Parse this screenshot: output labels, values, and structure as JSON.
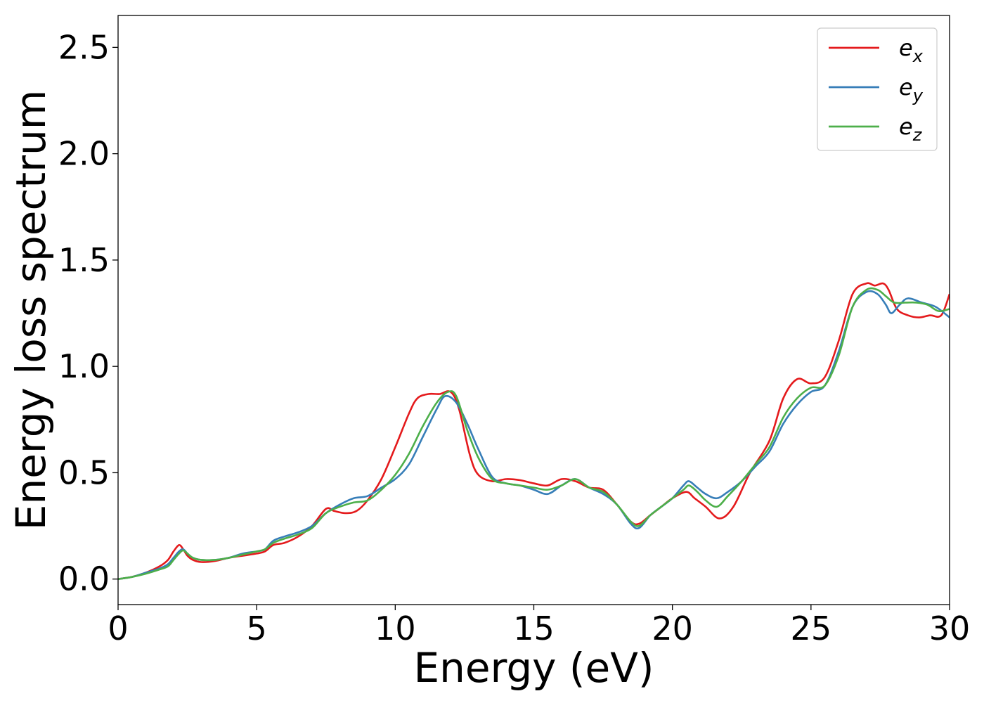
{
  "chart_data": {
    "type": "line",
    "xlabel": "Energy (eV)",
    "ylabel": "Energy loss spectrum",
    "xlim": [
      0,
      30
    ],
    "ylim": [
      -0.12,
      2.65
    ],
    "xticks": [
      0,
      5,
      10,
      15,
      20,
      25,
      30
    ],
    "xtick_labels": [
      "0",
      "5",
      "10",
      "15",
      "20",
      "25",
      "30"
    ],
    "yticks": [
      0.0,
      0.5,
      1.0,
      1.5,
      2.0,
      2.5
    ],
    "ytick_labels": [
      "0.0",
      "0.5",
      "1.0",
      "1.5",
      "2.0",
      "2.5"
    ],
    "grid": false,
    "legend_position": "top-right",
    "series": [
      {
        "name": "e",
        "subscript": "x",
        "color": "#e41a1c",
        "x": [
          0,
          0.5,
          1,
          1.5,
          1.8,
          2.0,
          2.2,
          2.35,
          2.5,
          2.7,
          3.0,
          3.5,
          4,
          4.5,
          5,
          5.3,
          5.6,
          6,
          6.5,
          7,
          7.5,
          7.8,
          8.2,
          8.6,
          9,
          9.5,
          10,
          10.5,
          10.8,
          11.2,
          11.6,
          12.0,
          12.3,
          12.7,
          13.0,
          13.5,
          14,
          14.5,
          15,
          15.5,
          16,
          16.5,
          17,
          17.5,
          18,
          18.5,
          18.8,
          19.2,
          19.6,
          20,
          20.5,
          20.8,
          21.2,
          21.7,
          22.2,
          22.8,
          23.5,
          24,
          24.5,
          25,
          25.5,
          26,
          26.5,
          27,
          27.3,
          27.6,
          27.8,
          28.1,
          28.5,
          28.9,
          29.3,
          29.7,
          30
        ],
        "y": [
          0.0,
          0.01,
          0.03,
          0.06,
          0.09,
          0.13,
          0.16,
          0.14,
          0.11,
          0.09,
          0.08,
          0.085,
          0.1,
          0.11,
          0.12,
          0.13,
          0.16,
          0.17,
          0.2,
          0.25,
          0.33,
          0.32,
          0.31,
          0.32,
          0.37,
          0.47,
          0.62,
          0.78,
          0.85,
          0.87,
          0.87,
          0.88,
          0.8,
          0.58,
          0.49,
          0.46,
          0.47,
          0.465,
          0.45,
          0.44,
          0.47,
          0.46,
          0.43,
          0.42,
          0.35,
          0.27,
          0.26,
          0.3,
          0.34,
          0.38,
          0.41,
          0.38,
          0.34,
          0.285,
          0.34,
          0.5,
          0.65,
          0.85,
          0.94,
          0.92,
          0.95,
          1.12,
          1.34,
          1.39,
          1.38,
          1.39,
          1.36,
          1.27,
          1.24,
          1.23,
          1.24,
          1.24,
          1.34
        ]
      },
      {
        "name": "e",
        "subscript": "y",
        "color": "#377eb8",
        "x": [
          0,
          0.5,
          1,
          1.5,
          1.8,
          2.0,
          2.2,
          2.35,
          2.5,
          2.7,
          3.0,
          3.5,
          4,
          4.5,
          5,
          5.3,
          5.6,
          6,
          6.5,
          7,
          7.5,
          8,
          8.5,
          9,
          9.5,
          10,
          10.5,
          11,
          11.5,
          11.8,
          12.2,
          12.6,
          13.0,
          13.5,
          14,
          14.5,
          15,
          15.5,
          16,
          16.5,
          17,
          17.5,
          18,
          18.5,
          18.8,
          19.2,
          19.6,
          20,
          20.4,
          20.6,
          20.9,
          21.2,
          21.6,
          22,
          22.5,
          23,
          23.5,
          24,
          24.5,
          25,
          25.5,
          26,
          26.5,
          27,
          27.4,
          27.7,
          27.9,
          28.2,
          28.5,
          29,
          29.5,
          30
        ],
        "y": [
          0.0,
          0.01,
          0.03,
          0.05,
          0.07,
          0.1,
          0.13,
          0.14,
          0.12,
          0.1,
          0.09,
          0.09,
          0.1,
          0.12,
          0.13,
          0.14,
          0.18,
          0.2,
          0.22,
          0.25,
          0.31,
          0.35,
          0.38,
          0.39,
          0.43,
          0.47,
          0.54,
          0.67,
          0.8,
          0.86,
          0.83,
          0.73,
          0.61,
          0.48,
          0.45,
          0.44,
          0.42,
          0.4,
          0.44,
          0.47,
          0.43,
          0.4,
          0.35,
          0.26,
          0.24,
          0.3,
          0.34,
          0.38,
          0.44,
          0.46,
          0.43,
          0.4,
          0.38,
          0.41,
          0.46,
          0.53,
          0.6,
          0.73,
          0.82,
          0.88,
          0.91,
          1.07,
          1.28,
          1.35,
          1.34,
          1.29,
          1.25,
          1.29,
          1.32,
          1.3,
          1.28,
          1.23
        ]
      },
      {
        "name": "e",
        "subscript": "z",
        "color": "#4daf4a",
        "x": [
          0,
          0.5,
          1,
          1.5,
          1.8,
          2.0,
          2.2,
          2.35,
          2.5,
          2.7,
          3.0,
          3.5,
          4,
          4.5,
          5,
          5.3,
          5.6,
          6,
          6.5,
          7,
          7.5,
          8,
          8.5,
          9,
          9.5,
          10,
          10.5,
          11,
          11.5,
          11.9,
          12.2,
          12.6,
          13.0,
          13.5,
          14,
          14.5,
          15,
          15.5,
          16,
          16.5,
          17,
          17.5,
          18,
          18.5,
          18.8,
          19.2,
          19.6,
          20,
          20.4,
          20.6,
          20.9,
          21.2,
          21.6,
          22,
          22.5,
          23,
          23.5,
          24,
          24.5,
          25,
          25.5,
          26,
          26.5,
          27,
          27.4,
          27.7,
          28.0,
          28.4,
          28.8,
          29.2,
          29.6,
          30
        ],
        "y": [
          0.0,
          0.01,
          0.025,
          0.045,
          0.06,
          0.09,
          0.12,
          0.135,
          0.12,
          0.1,
          0.09,
          0.09,
          0.1,
          0.115,
          0.13,
          0.14,
          0.17,
          0.19,
          0.21,
          0.24,
          0.31,
          0.34,
          0.36,
          0.37,
          0.42,
          0.49,
          0.59,
          0.72,
          0.83,
          0.88,
          0.86,
          0.7,
          0.57,
          0.47,
          0.45,
          0.44,
          0.43,
          0.42,
          0.44,
          0.47,
          0.43,
          0.41,
          0.35,
          0.27,
          0.25,
          0.3,
          0.34,
          0.38,
          0.42,
          0.44,
          0.41,
          0.37,
          0.34,
          0.39,
          0.46,
          0.54,
          0.62,
          0.76,
          0.85,
          0.9,
          0.91,
          1.05,
          1.28,
          1.36,
          1.36,
          1.33,
          1.3,
          1.3,
          1.3,
          1.29,
          1.26,
          1.27
        ]
      }
    ]
  }
}
